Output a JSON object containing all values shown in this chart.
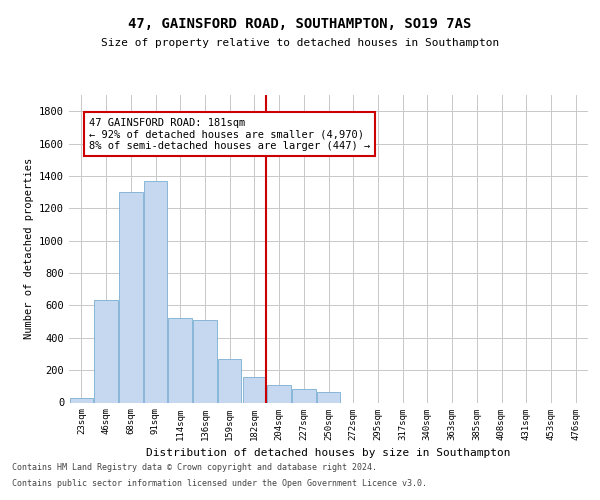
{
  "title": "47, GAINSFORD ROAD, SOUTHAMPTON, SO19 7AS",
  "subtitle": "Size of property relative to detached houses in Southampton",
  "xlabel": "Distribution of detached houses by size in Southampton",
  "ylabel": "Number of detached properties",
  "footer_line1": "Contains HM Land Registry data © Crown copyright and database right 2024.",
  "footer_line2": "Contains public sector information licensed under the Open Government Licence v3.0.",
  "annotation_line1": "47 GAINSFORD ROAD: 181sqm",
  "annotation_line2": "← 92% of detached houses are smaller (4,970)",
  "annotation_line3": "8% of semi-detached houses are larger (447) →",
  "marker_index": 7,
  "bar_color": "#c5d8f0",
  "bar_edge_color": "#7aafd4",
  "marker_color": "#cc0000",
  "background_color": "#ffffff",
  "grid_color": "#c8c8c8",
  "categories": [
    "23sqm",
    "46sqm",
    "68sqm",
    "91sqm",
    "114sqm",
    "136sqm",
    "159sqm",
    "182sqm",
    "204sqm",
    "227sqm",
    "250sqm",
    "272sqm",
    "295sqm",
    "317sqm",
    "340sqm",
    "363sqm",
    "385sqm",
    "408sqm",
    "431sqm",
    "453sqm",
    "476sqm"
  ],
  "values": [
    30,
    635,
    1300,
    1370,
    520,
    510,
    270,
    155,
    110,
    85,
    65,
    0,
    0,
    0,
    0,
    0,
    0,
    0,
    0,
    0,
    0
  ],
  "ylim": [
    0,
    1900
  ],
  "yticks": [
    0,
    200,
    400,
    600,
    800,
    1000,
    1200,
    1400,
    1600,
    1800
  ]
}
